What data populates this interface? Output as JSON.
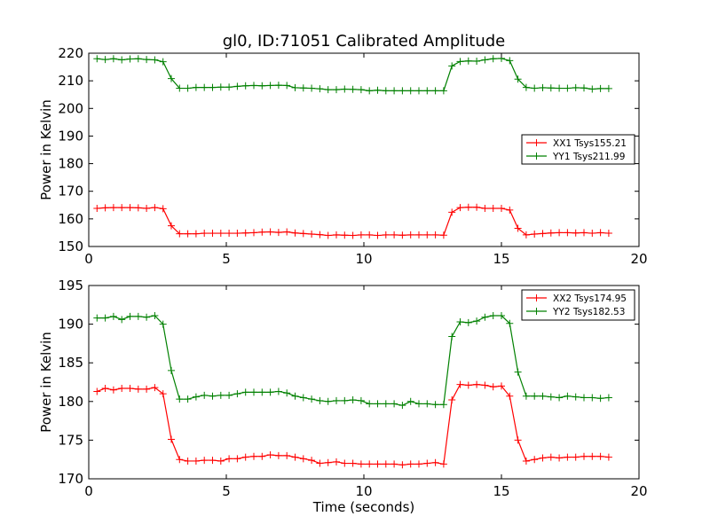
{
  "figure": {
    "title": "gl0, ID:71051 Calibrated Amplitude"
  },
  "chart_data": [
    {
      "type": "line",
      "title": "gl0, ID:71051 Calibrated Amplitude",
      "xlabel": "",
      "ylabel": "Power in Kelvin",
      "xlim": [
        0,
        20
      ],
      "ylim": [
        150,
        220
      ],
      "xticks": [
        0,
        5,
        10,
        15,
        20
      ],
      "yticks": [
        150,
        160,
        170,
        180,
        190,
        200,
        210,
        220
      ],
      "grid": false,
      "legend": "right",
      "x": [
        0.3,
        0.6,
        0.9,
        1.2,
        1.5,
        1.8,
        2.1,
        2.4,
        2.7,
        3.0,
        3.3,
        3.6,
        3.9,
        4.2,
        4.5,
        4.8,
        5.1,
        5.4,
        5.7,
        6.0,
        6.3,
        6.6,
        6.9,
        7.2,
        7.5,
        7.8,
        8.1,
        8.4,
        8.7,
        9.0,
        9.3,
        9.6,
        9.9,
        10.2,
        10.5,
        10.8,
        11.1,
        11.4,
        11.7,
        12.0,
        12.3,
        12.6,
        12.9,
        13.2,
        13.5,
        13.8,
        14.1,
        14.4,
        14.7,
        15.0,
        15.3,
        15.6,
        15.9,
        16.2,
        16.5,
        16.8,
        17.1,
        17.4,
        17.7,
        18.0,
        18.3,
        18.6,
        18.9
      ],
      "series": [
        {
          "name": "XX1 Tsys155.21",
          "color": "#ff0000",
          "values": [
            163.8,
            164.0,
            164.1,
            164.1,
            164.1,
            164.0,
            163.8,
            164.1,
            163.7,
            157.5,
            154.6,
            154.6,
            154.6,
            154.8,
            154.8,
            154.8,
            154.8,
            154.8,
            154.9,
            155.0,
            155.2,
            155.3,
            155.1,
            155.3,
            154.9,
            154.7,
            154.5,
            154.3,
            154.0,
            154.2,
            154.1,
            154.0,
            154.2,
            154.2,
            154.0,
            154.2,
            154.2,
            154.1,
            154.2,
            154.2,
            154.2,
            154.2,
            154.1,
            162.4,
            164.1,
            164.2,
            164.2,
            163.8,
            163.8,
            163.8,
            163.2,
            156.6,
            154.2,
            154.5,
            154.7,
            154.9,
            155.0,
            155.0,
            154.9,
            155.0,
            154.8,
            155.0,
            154.8
          ]
        },
        {
          "name": "YY1 Tsys211.99",
          "color": "#008000",
          "values": [
            218.0,
            217.7,
            218.0,
            217.6,
            217.9,
            218.0,
            217.7,
            217.6,
            216.9,
            210.8,
            207.3,
            207.3,
            207.6,
            207.6,
            207.6,
            207.7,
            207.7,
            208.0,
            208.2,
            208.3,
            208.2,
            208.3,
            208.4,
            208.3,
            207.5,
            207.4,
            207.3,
            207.1,
            206.8,
            206.8,
            207.0,
            206.9,
            206.8,
            206.4,
            206.6,
            206.4,
            206.4,
            206.4,
            206.4,
            206.4,
            206.4,
            206.4,
            206.4,
            215.4,
            217.0,
            217.2,
            217.1,
            217.6,
            218.0,
            218.1,
            217.3,
            210.6,
            207.6,
            207.3,
            207.5,
            207.4,
            207.3,
            207.3,
            207.5,
            207.4,
            207.0,
            207.2,
            207.2
          ]
        }
      ]
    },
    {
      "type": "line",
      "title": "",
      "xlabel": "Time (seconds)",
      "ylabel": "Power in Kelvin",
      "xlim": [
        0,
        20
      ],
      "ylim": [
        170,
        195
      ],
      "xticks": [
        0,
        5,
        10,
        15,
        20
      ],
      "yticks": [
        170,
        175,
        180,
        185,
        190,
        195
      ],
      "grid": false,
      "legend": "top-right",
      "x": [
        0.3,
        0.6,
        0.9,
        1.2,
        1.5,
        1.8,
        2.1,
        2.4,
        2.7,
        3.0,
        3.3,
        3.6,
        3.9,
        4.2,
        4.5,
        4.8,
        5.1,
        5.4,
        5.7,
        6.0,
        6.3,
        6.6,
        6.9,
        7.2,
        7.5,
        7.8,
        8.1,
        8.4,
        8.7,
        9.0,
        9.3,
        9.6,
        9.9,
        10.2,
        10.5,
        10.8,
        11.1,
        11.4,
        11.7,
        12.0,
        12.3,
        12.6,
        12.9,
        13.2,
        13.5,
        13.8,
        14.1,
        14.4,
        14.7,
        15.0,
        15.3,
        15.6,
        15.9,
        16.2,
        16.5,
        16.8,
        17.1,
        17.4,
        17.7,
        18.0,
        18.3,
        18.6,
        18.9
      ],
      "series": [
        {
          "name": "XX2 Tsys174.95",
          "color": "#ff0000",
          "values": [
            181.3,
            181.7,
            181.5,
            181.7,
            181.7,
            181.6,
            181.6,
            181.8,
            181.0,
            175.1,
            172.5,
            172.3,
            172.3,
            172.4,
            172.4,
            172.3,
            172.6,
            172.6,
            172.8,
            172.9,
            172.9,
            173.1,
            173.0,
            173.0,
            172.8,
            172.6,
            172.4,
            172.0,
            172.1,
            172.2,
            172.0,
            172.0,
            171.9,
            171.9,
            171.9,
            171.9,
            171.9,
            171.8,
            171.9,
            171.9,
            172.0,
            172.1,
            171.9,
            180.2,
            182.2,
            182.1,
            182.2,
            182.1,
            181.9,
            182.0,
            180.7,
            175.0,
            172.3,
            172.5,
            172.7,
            172.8,
            172.7,
            172.8,
            172.8,
            172.9,
            172.9,
            172.9,
            172.8
          ]
        },
        {
          "name": "YY2 Tsys182.53",
          "color": "#008000",
          "values": [
            190.8,
            190.8,
            191.0,
            190.6,
            191.0,
            191.0,
            190.9,
            191.1,
            190.0,
            184.0,
            180.3,
            180.3,
            180.6,
            180.8,
            180.7,
            180.8,
            180.8,
            181.0,
            181.2,
            181.2,
            181.2,
            181.2,
            181.3,
            181.1,
            180.7,
            180.5,
            180.3,
            180.1,
            180.0,
            180.1,
            180.1,
            180.2,
            180.1,
            179.7,
            179.7,
            179.7,
            179.7,
            179.5,
            180.0,
            179.7,
            179.7,
            179.6,
            179.6,
            188.4,
            190.3,
            190.2,
            190.4,
            190.9,
            191.1,
            191.1,
            190.1,
            183.8,
            180.7,
            180.7,
            180.7,
            180.6,
            180.5,
            180.7,
            180.6,
            180.5,
            180.5,
            180.4,
            180.5
          ]
        }
      ]
    }
  ]
}
